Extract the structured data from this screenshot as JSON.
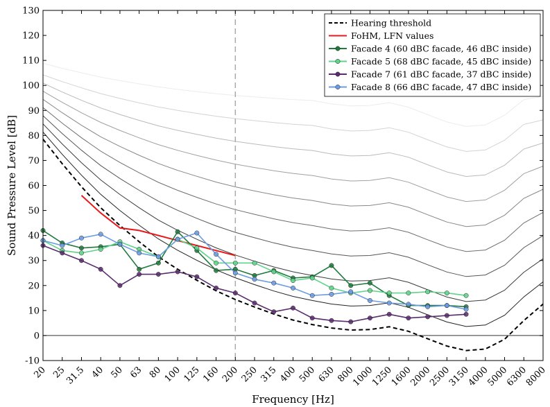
{
  "chart_data": {
    "type": "line",
    "xlabel": "Frequency [Hz]",
    "ylabel": "Sound Pressure Level [dB]",
    "ylim": [
      -10,
      130
    ],
    "yticks": [
      "-10",
      "0",
      "10",
      "20",
      "30",
      "40",
      "50",
      "60",
      "70",
      "80",
      "90",
      "100",
      "110",
      "120",
      "130"
    ],
    "categories": [
      "20",
      "25",
      "31.5",
      "40",
      "50",
      "63",
      "80",
      "100",
      "125",
      "160",
      "200",
      "250",
      "315",
      "400",
      "500",
      "630",
      "800",
      "1000",
      "1250",
      "1600",
      "2000",
      "2500",
      "3150",
      "4000",
      "5000",
      "6300",
      "8000"
    ],
    "grid": "vertical dashed line at 200 Hz; horizontal line at 0 dB",
    "legend_position": "top-right",
    "background_curves": {
      "color_range": [
        "#222222",
        "#ececec"
      ],
      "offsets": [
        10,
        20,
        30,
        40,
        50,
        60,
        70,
        80,
        90
      ],
      "description_levels": [
        4.4,
        20,
        30,
        40,
        50,
        60,
        70,
        80,
        90
      ]
    },
    "series": [
      {
        "name": "Hearing threshold",
        "color": "#000000",
        "style": "dashed",
        "values": [
          78.5,
          68.7,
          59.5,
          51.1,
          44.0,
          37.5,
          31.5,
          26.5,
          22.1,
          17.9,
          14.4,
          11.4,
          8.6,
          6.2,
          4.4,
          3.0,
          2.2,
          2.4,
          3.5,
          1.7,
          -1.3,
          -4.2,
          -6.0,
          -5.4,
          -1.5,
          6.0,
          12.6
        ]
      },
      {
        "name": "FoHM, LFN values",
        "color": "#e8191c",
        "style": "solid",
        "values": [
          null,
          null,
          56,
          49,
          43,
          42,
          40,
          38,
          36,
          34,
          32,
          null,
          null,
          null,
          null,
          null,
          null,
          null,
          null,
          null,
          null,
          null,
          null,
          null,
          null,
          null,
          null
        ]
      },
      {
        "name": "Facade 4 (60 dBC facade, 46 dBC inside)",
        "color": "#1f7a3c",
        "style": "markers",
        "values": [
          42,
          37,
          35,
          35.5,
          36.5,
          26.5,
          29,
          41.5,
          34,
          26,
          26.5,
          24,
          26,
          23,
          23.5,
          28,
          20,
          21,
          16,
          12,
          12,
          12,
          11.5,
          null,
          null,
          null,
          null
        ]
      },
      {
        "name": "Facade 5 (68 dBC facade, 45 dBC inside)",
        "color": "#5fd38a",
        "style": "markers",
        "values": [
          38,
          34,
          33,
          34.5,
          37.5,
          34.5,
          31.5,
          38.5,
          35,
          29,
          29,
          29,
          25.5,
          22,
          23,
          19,
          17,
          18,
          17,
          17,
          17.5,
          17,
          16,
          null,
          null,
          null,
          null
        ]
      },
      {
        "name": "Facade 7 (61 dBC facade, 37 dBC inside)",
        "color": "#5a2b6e",
        "style": "markers",
        "values": [
          36,
          33,
          30,
          26.5,
          20,
          24.5,
          24.5,
          25.5,
          23.5,
          19,
          17,
          13,
          9.5,
          11,
          7,
          6,
          5.5,
          7,
          8.5,
          7,
          7.5,
          8,
          8.5,
          null,
          null,
          null,
          null
        ]
      },
      {
        "name": "Facade 8 (66 dBC facade, 47 dBC inside)",
        "color": "#6b9be3",
        "style": "markers",
        "values": [
          38,
          36,
          39,
          40.5,
          36.5,
          33,
          31.5,
          38.5,
          41,
          32.5,
          25,
          22.5,
          21,
          19,
          16,
          16.5,
          17.5,
          14,
          13,
          12.5,
          11.5,
          12,
          10.5,
          null,
          null,
          null,
          null
        ]
      }
    ]
  }
}
